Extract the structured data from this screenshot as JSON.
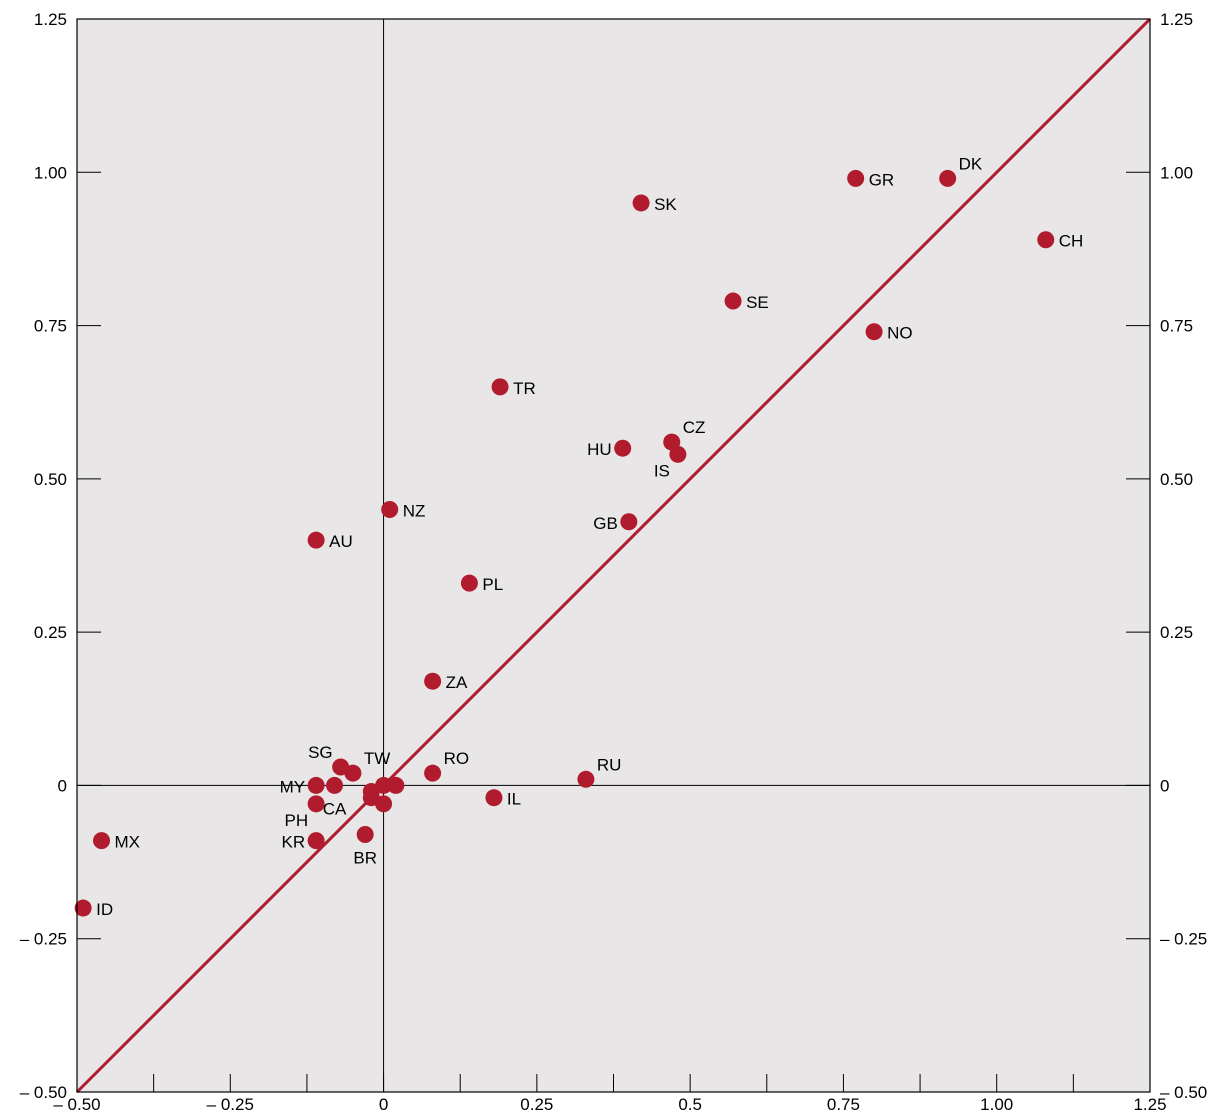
{
  "colors": {
    "plot_bg": "#e8e6e6",
    "marker": "#b01c2e",
    "diagonal": "#b01c2e",
    "axis": "#000000"
  },
  "chart_data": {
    "type": "scatter",
    "title": "",
    "xlabel": "",
    "ylabel": "",
    "xlim": [
      -0.5,
      1.25
    ],
    "ylim": [
      -0.5,
      1.25
    ],
    "grid": false,
    "reference_line": "45-degree diagonal (y = x)",
    "zero_lines": true,
    "x_tick_labels": [
      {
        "value": -0.5,
        "label": "– 0.50"
      },
      {
        "value": -0.25,
        "label": "– 0.25"
      },
      {
        "value": 0,
        "label": "0"
      },
      {
        "value": 0.25,
        "label": "0.25"
      },
      {
        "value": 0.5,
        "label": "0.5"
      },
      {
        "value": 0.75,
        "label": "0.75"
      },
      {
        "value": 1.0,
        "label": "1.00"
      },
      {
        "value": 1.25,
        "label": "1.25"
      }
    ],
    "x_minor_ticks": [
      -0.375,
      -0.125,
      0.125,
      0.375,
      0.625,
      0.875,
      1.125
    ],
    "y_tick_labels": [
      {
        "value": -0.5,
        "label": "– 0.50"
      },
      {
        "value": -0.25,
        "label": "– 0.25"
      },
      {
        "value": 0,
        "label": "0"
      },
      {
        "value": 0.25,
        "label": "0.25"
      },
      {
        "value": 0.5,
        "label": "0.50"
      },
      {
        "value": 0.75,
        "label": "0.75"
      },
      {
        "value": 1.0,
        "label": "1.00"
      },
      {
        "value": 1.25,
        "label": "1.25"
      }
    ],
    "points": [
      {
        "label": "DK",
        "x": 0.92,
        "y": 0.99,
        "pos": "above-right"
      },
      {
        "label": "GR",
        "x": 0.77,
        "y": 0.99,
        "pos": "right"
      },
      {
        "label": "SK",
        "x": 0.42,
        "y": 0.95,
        "pos": "right"
      },
      {
        "label": "CH",
        "x": 1.08,
        "y": 0.89,
        "pos": "right"
      },
      {
        "label": "SE",
        "x": 0.57,
        "y": 0.79,
        "pos": "right"
      },
      {
        "label": "NO",
        "x": 0.8,
        "y": 0.74,
        "pos": "right"
      },
      {
        "label": "TR",
        "x": 0.19,
        "y": 0.65,
        "pos": "right"
      },
      {
        "label": "CZ",
        "x": 0.47,
        "y": 0.56,
        "pos": "above-right"
      },
      {
        "label": "HU",
        "x": 0.39,
        "y": 0.55,
        "pos": "left"
      },
      {
        "label": "IS",
        "x": 0.48,
        "y": 0.54,
        "pos": "below-left"
      },
      {
        "label": "NZ",
        "x": 0.01,
        "y": 0.45,
        "pos": "right"
      },
      {
        "label": "GB",
        "x": 0.4,
        "y": 0.43,
        "pos": "left"
      },
      {
        "label": "AU",
        "x": -0.11,
        "y": 0.4,
        "pos": "right"
      },
      {
        "label": "PL",
        "x": 0.14,
        "y": 0.33,
        "pos": "right"
      },
      {
        "label": "ZA",
        "x": 0.08,
        "y": 0.17,
        "pos": "right"
      },
      {
        "label": "RO",
        "x": 0.08,
        "y": 0.02,
        "pos": "above-right"
      },
      {
        "label": "RU",
        "x": 0.33,
        "y": 0.01,
        "pos": "above-right"
      },
      {
        "label": "IL",
        "x": 0.18,
        "y": -0.02,
        "pos": "right"
      },
      {
        "label": "SG",
        "x": -0.07,
        "y": 0.03,
        "pos": "above-left"
      },
      {
        "label": "TW",
        "x": -0.05,
        "y": 0.02,
        "pos": "above-right"
      },
      {
        "label": "MY",
        "x": -0.11,
        "y": 0.0,
        "pos": "left"
      },
      {
        "label": "CA",
        "x": -0.08,
        "y": 0.0,
        "pos": "below"
      },
      {
        "label": "PH",
        "x": -0.11,
        "y": -0.03,
        "pos": "below-left"
      },
      {
        "label": "KR",
        "x": -0.11,
        "y": -0.09,
        "pos": "left"
      },
      {
        "label": "BR",
        "x": -0.03,
        "y": -0.08,
        "pos": "below"
      },
      {
        "label": "MX",
        "x": -0.46,
        "y": -0.09,
        "pos": "right"
      },
      {
        "label": "ID",
        "x": -0.49,
        "y": -0.2,
        "pos": "right"
      },
      {
        "label": "",
        "x": 0.0,
        "y": 0.0
      },
      {
        "label": "",
        "x": 0.02,
        "y": 0.0
      },
      {
        "label": "",
        "x": -0.02,
        "y": -0.01
      },
      {
        "label": "",
        "x": -0.02,
        "y": -0.02
      },
      {
        "label": "",
        "x": 0.0,
        "y": -0.03
      }
    ]
  }
}
